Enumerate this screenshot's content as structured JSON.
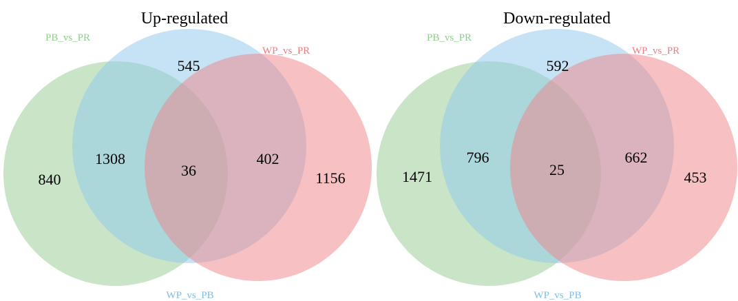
{
  "diagrams": [
    {
      "title": "Up-regulated",
      "sets": {
        "green": {
          "label": "PB_vs_PR",
          "color": "#93c98f",
          "label_color": "#8fcd8a"
        },
        "blue": {
          "label": "WP_vs_PB",
          "color": "#8ec7ee",
          "label_color": "#7ebde6"
        },
        "red": {
          "label": "WP_vs_PR",
          "color": "#ef8388",
          "label_color": "#f07b7f"
        }
      },
      "counts": {
        "green_only": "840",
        "green_blue": "1308",
        "blue_only": "545",
        "all_three": "36",
        "blue_red": "402",
        "red_only": "1156"
      }
    },
    {
      "title": "Down-regulated",
      "sets": {
        "green": {
          "label": "PB_vs_PR",
          "color": "#93c98f",
          "label_color": "#8fcd8a"
        },
        "blue": {
          "label": "WP_vs_PB",
          "color": "#8ec7ee",
          "label_color": "#7ebde6"
        },
        "red": {
          "label": "WP_vs_PR",
          "color": "#ef8388",
          "label_color": "#f07b7f"
        }
      },
      "counts": {
        "green_only": "1471",
        "green_blue": "796",
        "blue_only": "592",
        "all_three": "25",
        "blue_red": "662",
        "red_only": "453"
      }
    }
  ]
}
